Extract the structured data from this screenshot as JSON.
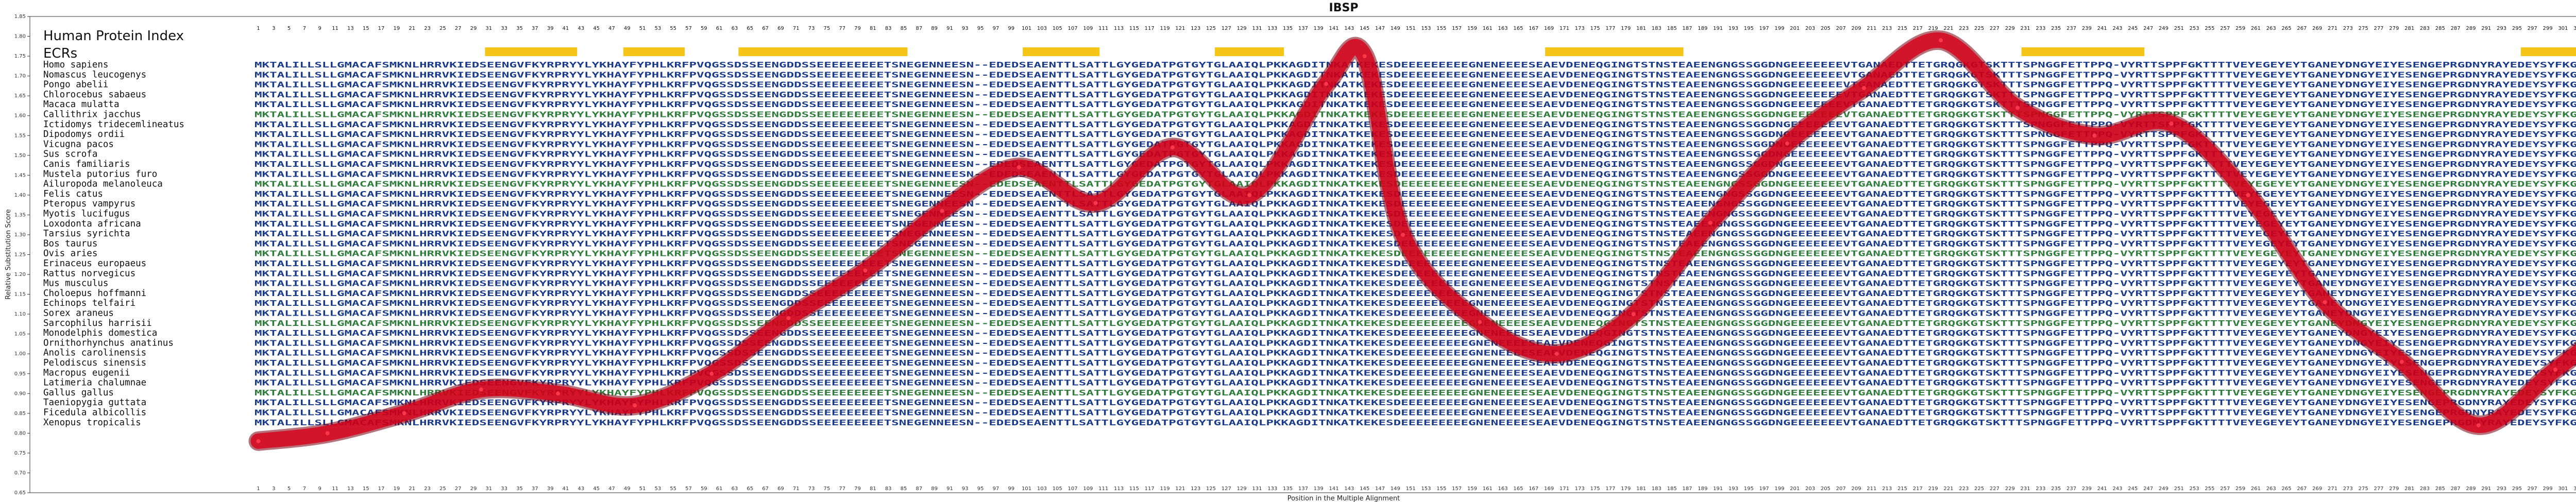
{
  "chart_data": {
    "type": "line",
    "title": "IBSP",
    "xlabel": "Position in the Multiple Alignment",
    "ylabel": "Relative Substitution Score",
    "xlim": [
      1,
      316
    ],
    "ylim": [
      0.65,
      1.85
    ],
    "yticks": [
      "0.65",
      "0.70",
      "0.75",
      "0.80",
      "0.85",
      "0.90",
      "0.95",
      "1.00",
      "1.05",
      "1.10",
      "1.15",
      "1.20",
      "1.25",
      "1.30",
      "1.35",
      "1.40",
      "1.45",
      "1.50",
      "1.55",
      "1.60",
      "1.65",
      "1.70",
      "1.75",
      "1.80",
      "1.85"
    ],
    "header_title": "Human Protein Index",
    "ecr_label": "ECRs",
    "ecr_regions": [
      [
        31,
        42
      ],
      [
        49,
        56
      ],
      [
        64,
        85
      ],
      [
        101,
        110
      ],
      [
        126,
        134
      ],
      [
        169,
        186
      ],
      [
        231,
        246
      ],
      [
        296,
        307
      ]
    ],
    "ecr_color": "#f5c518",
    "line_color": "#d8001a",
    "x": [
      1,
      10,
      20,
      30,
      40,
      50,
      60,
      70,
      80,
      90,
      100,
      110,
      120,
      130,
      140,
      145,
      150,
      160,
      170,
      180,
      190,
      200,
      210,
      220,
      230,
      240,
      250,
      260,
      270,
      280,
      290,
      300,
      310,
      316
    ],
    "y": [
      0.78,
      0.8,
      0.85,
      0.91,
      0.9,
      0.87,
      0.95,
      1.09,
      1.21,
      1.36,
      1.47,
      1.38,
      1.52,
      1.4,
      1.68,
      1.75,
      1.3,
      1.08,
      1.0,
      1.1,
      1.33,
      1.53,
      1.67,
      1.79,
      1.62,
      1.55,
      1.58,
      1.4,
      1.13,
      0.98,
      0.82,
      0.96,
      1.1,
      1.1
    ],
    "species": [
      "Homo sapiens",
      "Nomascus leucogenys",
      "Pongo abelii",
      "Chlorocebus sabaeus",
      "Macaca mulatta",
      "Callithrix jacchus",
      "Ictidomys tridecemlineatus",
      "Dipodomys ordii",
      "Vicugna pacos",
      "Sus scrofa",
      "Canis familiaris",
      "Mustela putorius furo",
      "Ailuropoda melanoleuca",
      "Felis catus",
      "Pteropus vampyrus",
      "Myotis lucifugus",
      "Loxodonta africana",
      "Tarsius syrichta",
      "Bos taurus",
      "Ovis aries",
      "Erinaceus europaeus",
      "Rattus norvegicus",
      "Mus musculus",
      "Choloepus hoffmanni",
      "Echinops telfairi",
      "Sorex araneus",
      "Sarcophilus harrisii",
      "Monodelphis domestica",
      "Ornithorhynchus anatinus",
      "Anolis carolinensis",
      "Pelodiscus sinensis",
      "Macropus eugenii",
      "Latimeria chalumnae",
      "Gallus gallus",
      "Taeniopygia guttata",
      "Ficedula albicollis",
      "Xenopus tropicalis"
    ],
    "sequences": [
      "MKTALILLSLLGMACAFSMKNLHRRVKIEDSEENGVFKYRPRYYLYKHAYFYPHLKRFPVQGSSDSSEENGDDSSEEEEEEEEETSNEGENNEESN--EDEDSEAENTTLSATTLGYGEDATPGTGYTGLAAIQLPKKAGDITNKATKEKESDEEEEEEEEEGNENEEEESEAEVDENEQGINGTSTNSTEAEENGNGSSGGDNGEEEEEEEVTGANAEDTTETGRQGKGTSKTTTSPNGGFETTPPQ-VYRTTSPPFGKTTTTVEYEGEYEYTGANEYDNGYEIYESENGEPRGDNYRAYEDEYSYFKGQGYDGYDGQNYYHH",
      "MKTALILLSLLGMACAFSMKNLHRRVKIEDSEENGVFKYRPRYYLYKHAYFYPHLKRFPVQGSSDSSEENGDDSSEEEEEEEEETSNEGENNEESN--EDEDSEAENTTLSATTLGYGEDATPGTGYTGLAAIQLPKKAGDITNKATKEKESDEEEEEEEEEGNENEEEESEAEVDENEQGINGTSTNSTEAEENGNGSSGGDNGEEEEEEEVTGANAEDTTETGRQGKGTSKTTTSPNGGFETTPPQ-VYRTTSPPFGKTTTTVEYEGEYEYTGANEYDNGYEIYESENGEPRGDNYRAYEDEYSYFKGQGYDGYDGQNYYHH",
      "MKTALILLSLLGMACAFSMKNLHRRVKIEDSEENGVFKYRPRYYLYKHAYFYPHLKRFPVQGSSDSSEENGDDSSEEEEEEEEETSNEGENNEESN--EDEDSEAENTTLSATTLGYGEDATPGTGYTGLAAIQLPKKAGDITNKATKEKESDEEEEEEEEEGNENEEEESEAEVDENEQGINGTSTNSTEAEENGNGSSGGDNGEEEEEEEVTGANAEDTTETGRQGKGTSKTTTSPNGGFETTPPQ-VYRTTSPPFGKTTTTVEYEGEYEYTGANEYDNGYEIYESENGEPRGDNYRAYEDEYSYFKGQGYDGYDGQNYYHH",
      "MKTALILLSLLGMACAFSMKNLHRRVKIEDSEENGVFKYRPRYYLYKHAYFYPHLKRFPVQGSSDSSEENGDDSSEEEEEEEEETSNEGENNEESN--EDEDSEAENTTLSATTLGYGEDATPGTGYTGLAAIQLPKKAGDITNKATKEKESDEEEEEEEEEGNENEEEESEAEVDENEQGINGTSTNSTEAEENGNGSSGGDNGEEEEEEEVTGANAEDTTETGRQGKGTSKTTTSPNGGFETTPPQ-VYRTTSPPFGKTTTTVEYEGEYEYTGANEYDNGYEIYESENGEPRGDNYRAYEDEYSYFKGQGYDGYDGQNYYHH",
      "MKTALILLSLLGMACAFSMKNLHRRVKIEDSEENGVFKYRPRYYLYKHAYFYPHLKRFPVQGSSDSSEENGDDSSEEEEEEEEETSNEGENNEESN--EDEDSEAENTTLSATTLGYGEDATPGTGYTGLAAIQLPKKAGDITNKATKEKESDEEEEEEEEEGNENEEEESEAEVDENEQGINGTSTNSTEAEENGNGSSGGDNGEEEEEEEVTGANAEDTTETGRQGKGTSKTTTSPNGGFETTPPQ-VYRTTSPPFGKTTTTVEYEGEYEYTGANEYDNGYEIYESENGEPRGDNYRAYEDEYSYFKGQGYDGYDGQNYYHH",
      "MKTALILLSLLGMACAFSMKNLHRRVKIEDSEENGVFKYRPRYYLYKHAYFYPHLKRFPVQGSSDSSEENGDDSSEEEEEEEEETSNEGENNEESN--EDEDSEAENTTLSATTLGYGEDATPGTGYTGLAAIQLPKKAGDITNKATKEKESDEEEEEEEEEGNENEEEESEAEVDENEQGINGTSTNSTEAEENGNGSSGGDNGEEEEEEEVTGANAEDTTETGRQGKGTSKTTTSPNGGFETTPPQ-VYRTTSPPFGKTTTTVEYEGEYEYTGANEYDNGYEIYESENGEPRGDNYRAYEDEYSYFKGQGYDGYDGQNYYHH",
      "MKTALILLSLLGMACAFSMKNLHRRVKIEDSEENGVFKYRPRYYLYKHAYFYPHLKRFPVQGSSDSSEENGDDSSEEEEEEEEETSNEGENNEESN--EDEDSEAENTTLSATTLGYGEDATPGTGYTGLAAIQLPKKAGDITNKATKEKESDEEEEEEEEEGNENEEEESEAEVDENEQGINGTSTNSTEAEENGNGSSGGDNGEEEEEEEVTGANAEDTTETGRQGKGTSKTTTSPNGGFETTPPQ-VYRTTSPPFGKTTTTVEYEGEYEYTGANEYDNGYEIYESENGEPRGDNYRAYEDEYSYFKGQGYDGYDGQNYYHH",
      "MKTALILLSLLGMACAFSMKNLHRRVKIEDSEENGVFKYRPRYYLYKHAYFYPHLKRFPVQGSSDSSEENGDDSSEEEEEEEEETSNEGENNEESN--EDEDSEAENTTLSATTLGYGEDATPGTGYTGLAAIQLPKKAGDITNKATKEKESDEEEEEEEEEGNENEEEESEAEVDENEQGINGTSTNSTEAEENGNGSSGGDNGEEEEEEEVTGANAEDTTETGRQGKGTSKTTTSPNGGFETTPPQ-VYRTTSPPFGKTTTTVEYEGEYEYTGANEYDNGYEIYESENGEPRGDNYRAYEDEYSYFKGQGYDGYDGQNYYHH",
      "MKTALILLSLLGMACAFSMKNLHRRVKIEDSEENGVFKYRPRYYLYKHAYFYPHLKRFPVQGSSDSSEENGDDSSEEEEEEEEETSNEGENNEESN--EDEDSEAENTTLSATTLGYGEDATPGTGYTGLAAIQLPKKAGDITNKATKEKESDEEEEEEEEEGNENEEEESEAEVDENEQGINGTSTNSTEAEENGNGSSGGDNGEEEEEEEVTGANAEDTTETGRQGKGTSKTTTSPNGGFETTPPQ-VYRTTSPPFGKTTTTVEYEGEYEYTGANEYDNGYEIYESENGEPRGDNYRAYEDEYSYFKGQGYDGYDGQNYYHH",
      "MKTALILLSLLGMACAFSMKNLHRRVKIEDSEENGVFKYRPRYYLYKHAYFYPHLKRFPVQGSSDSSEENGDDSSEEEEEEEEETSNEGENNEESN--EDEDSEAENTTLSATTLGYGEDATPGTGYTGLAAIQLPKKAGDITNKATKEKESDEEEEEEEEEGNENEEEESEAEVDENEQGINGTSTNSTEAEENGNGSSGGDNGEEEEEEEVTGANAEDTTETGRQGKGTSKTTTSPNGGFETTPPQ-VYRTTSPPFGKTTTTVEYEGEYEYTGANEYDNGYEIYESENGEPRGDNYRAYEDEYSYFKGQGYDGYDGQNYYHH",
      "MKTALILLSLLGMACAFSMKNLHRRVKIEDSEENGVFKYRPRYYLYKHAYFYPHLKRFPVQGSSDSSEENGDDSSEEEEEEEEETSNEGENNEESN--EDEDSEAENTTLSATTLGYGEDATPGTGYTGLAAIQLPKKAGDITNKATKEKESDEEEEEEEEEGNENEEEESEAEVDENEQGINGTSTNSTEAEENGNGSSGGDNGEEEEEEEVTGANAEDTTETGRQGKGTSKTTTSPNGGFETTPPQ-VYRTTSPPFGKTTTTVEYEGEYEYTGANEYDNGYEIYESENGEPRGDNYRAYEDEYSYFKGQGYDGYDGQNYYHH",
      "MKTALILLSLLGMACAFSMKNLHRRVKIEDSEENGVFKYRPRYYLYKHAYFYPHLKRFPVQGSSDSSEENGDDSSEEEEEEEEETSNEGENNEESN--EDEDSEAENTTLSATTLGYGEDATPGTGYTGLAAIQLPKKAGDITNKATKEKESDEEEEEEEEEGNENEEEESEAEVDENEQGINGTSTNSTEAEENGNGSSGGDNGEEEEEEEVTGANAEDTTETGRQGKGTSKTTTSPNGGFETTPPQ-VYRTTSPPFGKTTTTVEYEGEYEYTGANEYDNGYEIYESENGEPRGDNYRAYEDEYSYFKGQGYDGYDGQNYYHH",
      "MKTALILLSLLGMACAFSMKNLHRRVKIEDSEENGVFKYRPRYYLYKHAYFYPHLKRFPVQGSSDSSEENGDDSSEEEEEEEEETSNEGENNEESN--EDEDSEAENTTLSATTLGYGEDATPGTGYTGLAAIQLPKKAGDITNKATKEKESDEEEEEEEEEGNENEEEESEAEVDENEQGINGTSTNSTEAEENGNGSSGGDNGEEEEEEEVTGANAEDTTETGRQGKGTSKTTTSPNGGFETTPPQ-VYRTTSPPFGKTTTTVEYEGEYEYTGANEYDNGYEIYESENGEPRGDNYRAYEDEYSYFKGQGYDGYDGQNYYHH",
      "MKTALILLSLLGMACAFSMKNLHRRVKIEDSEENGVFKYRPRYYLYKHAYFYPHLKRFPVQGSSDSSEENGDDSSEEEEEEEEETSNEGENNEESN--EDEDSEAENTTLSATTLGYGEDATPGTGYTGLAAIQLPKKAGDITNKATKEKESDEEEEEEEEEGNENEEEESEAEVDENEQGINGTSTNSTEAEENGNGSSGGDNGEEEEEEEVTGANAEDTTETGRQGKGTSKTTTSPNGGFETTPPQ-VYRTTSPPFGKTTTTVEYEGEYEYTGANEYDNGYEIYESENGEPRGDNYRAYEDEYSYFKGQGYDGYDGQNYYHH",
      "MKTALILLSLLGMACAFSMKNLHRRVKIEDSEENGVFKYRPRYYLYKHAYFYPHLKRFPVQGSSDSSEENGDDSSEEEEEEEEETSNEGENNEESN--EDEDSEAENTTLSATTLGYGEDATPGTGYTGLAAIQLPKKAGDITNKATKEKESDEEEEEEEEEGNENEEEESEAEVDENEQGINGTSTNSTEAEENGNGSSGGDNGEEEEEEEVTGANAEDTTETGRQGKGTSKTTTSPNGGFETTPPQ-VYRTTSPPFGKTTTTVEYEGEYEYTGANEYDNGYEIYESENGEPRGDNYRAYEDEYSYFKGQGYDGYDGQNYYHH",
      "MKTALILLSLLGMACAFSMKNLHRRVKIEDSEENGVFKYRPRYYLYKHAYFYPHLKRFPVQGSSDSSEENGDDSSEEEEEEEEETSNEGENNEESN--EDEDSEAENTTLSATTLGYGEDATPGTGYTGLAAIQLPKKAGDITNKATKEKESDEEEEEEEEEGNENEEEESEAEVDENEQGINGTSTNSTEAEENGNGSSGGDNGEEEEEEEVTGANAEDTTETGRQGKGTSKTTTSPNGGFETTPPQ-VYRTTSPPFGKTTTTVEYEGEYEYTGANEYDNGYEIYESENGEPRGDNYRAYEDEYSYFKGQGYDGYDGQNYYHH",
      "MKTALILLSLLGMACAFSMKNLHRRVKIEDSEENGVFKYRPRYYLYKHAYFYPHLKRFPVQGSSDSSEENGDDSSEEEEEEEEETSNEGENNEESN--EDEDSEAENTTLSATTLGYGEDATPGTGYTGLAAIQLPKKAGDITNKATKEKESDEEEEEEEEEGNENEEEESEAEVDENEQGINGTSTNSTEAEENGNGSSGGDNGEEEEEEEVTGANAEDTTETGRQGKGTSKTTTSPNGGFETTPPQ-VYRTTSPPFGKTTTTVEYEGEYEYTGANEYDNGYEIYESENGEPRGDNYRAYEDEYSYFKGQGYDGYDGQNYYHH",
      "MKTALILLSLLGMACAFSMKNLHRRVKIEDSEENGVFKYRPRYYLYKHAYFYPHLKRFPVQGSSDSSEENGDDSSEEEEEEEEETSNEGENNEESN--EDEDSEAENTTLSATTLGYGEDATPGTGYTGLAAIQLPKKAGDITNKATKEKESDEEEEEEEEEGNENEEEESEAEVDENEQGINGTSTNSTEAEENGNGSSGGDNGEEEEEEEVTGANAEDTTETGRQGKGTSKTTTSPNGGFETTPPQ-VYRTTSPPFGKTTTTVEYEGEYEYTGANEYDNGYEIYESENGEPRGDNYRAYEDEYSYFKGQGYDGYDGQNYYHH",
      "MKTALILLSLLGMACAFSMKNLHRRVKIEDSEENGVFKYRPRYYLYKHAYFYPHLKRFPVQGSSDSSEENGDDSSEEEEEEEEETSNEGENNEESN--EDEDSEAENTTLSATTLGYGEDATPGTGYTGLAAIQLPKKAGDITNKATKEKESDEEEEEEEEEGNENEEEESEAEVDENEQGINGTSTNSTEAEENGNGSSGGDNGEEEEEEEVTGANAEDTTETGRQGKGTSKTTTSPNGGFETTPPQ-VYRTTSPPFGKTTTTVEYEGEYEYTGANEYDNGYEIYESENGEPRGDNYRAYEDEYSYFKGQGYDGYDGQNYYHH",
      "MKTALILLSLLGMACAFSMKNLHRRVKIEDSEENGVFKYRPRYYLYKHAYFYPHLKRFPVQGSSDSSEENGDDSSEEEEEEEEETSNEGENNEESN--EDEDSEAENTTLSATTLGYGEDATPGTGYTGLAAIQLPKKAGDITNKATKEKESDEEEEEEEEEGNENEEEESEAEVDENEQGINGTSTNSTEAEENGNGSSGGDNGEEEEEEEVTGANAEDTTETGRQGKGTSKTTTSPNGGFETTPPQ-VYRTTSPPFGKTTTTVEYEGEYEYTGANEYDNGYEIYESENGEPRGDNYRAYEDEYSYFKGQGYDGYDGQNYYHH",
      "MKTALILLSLLGMACAFSMKNLHRRVKIEDSEENGVFKYRPRYYLYKHAYFYPHLKRFPVQGSSDSSEENGDDSSEEEEEEEEETSNEGENNEESN--EDEDSEAENTTLSATTLGYGEDATPGTGYTGLAAIQLPKKAGDITNKATKEKESDEEEEEEEEEGNENEEEESEAEVDENEQGINGTSTNSTEAEENGNGSSGGDNGEEEEEEEVTGANAEDTTETGRQGKGTSKTTTSPNGGFETTPPQ-VYRTTSPPFGKTTTTVEYEGEYEYTGANEYDNGYEIYESENGEPRGDNYRAYEDEYSYFKGQGYDGYDGQNYYHH",
      "MKTALILLSLLGMACAFSMKNLHRRVKIEDSEENGVFKYRPRYYLYKHAYFYPHLKRFPVQGSSDSSEENGDDSSEEEEEEEEETSNEGENNEESN--EDEDSEAENTTLSATTLGYGEDATPGTGYTGLAAIQLPKKAGDITNKATKEKESDEEEEEEEEEGNENEEEESEAEVDENEQGINGTSTNSTEAEENGNGSSGGDNGEEEEEEEVTGANAEDTTETGRQGKGTSKTTTSPNGGFETTPPQ-VYRTTSPPFGKTTTTVEYEGEYEYTGANEYDNGYEIYESENGEPRGDNYRAYEDEYSYFKGQGYDGYDGQNYYHH",
      "MKTALILLSLLGMACAFSMKNLHRRVKIEDSEENGVFKYRPRYYLYKHAYFYPHLKRFPVQGSSDSSEENGDDSSEEEEEEEEETSNEGENNEESN--EDEDSEAENTTLSATTLGYGEDATPGTGYTGLAAIQLPKKAGDITNKATKEKESDEEEEEEEEEGNENEEEESEAEVDENEQGINGTSTNSTEAEENGNGSSGGDNGEEEEEEEVTGANAEDTTETGRQGKGTSKTTTSPNGGFETTPPQ-VYRTTSPPFGKTTTTVEYEGEYEYTGANEYDNGYEIYESENGEPRGDNYRAYEDEYSYFKGQGYDGYDGQNYYHH",
      "MKTALILLSLLGMACAFSMKNLHRRVKIEDSEENGVFKYRPRYYLYKHAYFYPHLKRFPVQGSSDSSEENGDDSSEEEEEEEEETSNEGENNEESN--EDEDSEAENTTLSATTLGYGEDATPGTGYTGLAAIQLPKKAGDITNKATKEKESDEEEEEEEEEGNENEEEESEAEVDENEQGINGTSTNSTEAEENGNGSSGGDNGEEEEEEEVTGANAEDTTETGRQGKGTSKTTTSPNGGFETTPPQ-VYRTTSPPFGKTTTTVEYEGEYEYTGANEYDNGYEIYESENGEPRGDNYRAYEDEYSYFKGQGYDGYDGQNYYHH",
      "MKTALILLSLLGMACAFSMKNLHRRVKIEDSEENGVFKYRPRYYLYKHAYFYPHLKRFPVQGSSDSSEENGDDSSEEEEEEEEETSNEGENNEESN--EDEDSEAENTTLSATTLGYGEDATPGTGYTGLAAIQLPKKAGDITNKATKEKESDEEEEEEEEEGNENEEEESEAEVDENEQGINGTSTNSTEAEENGNGSSGGDNGEEEEEEEVTGANAEDTTETGRQGKGTSKTTTSPNGGFETTPPQ-VYRTTSPPFGKTTTTVEYEGEYEYTGANEYDNGYEIYESENGEPRGDNYRAYEDEYSYFKGQGYDGYDGQNYYHH",
      "MKTALILLSLLGMACAFSMKNLHRRVKIEDSEENGVFKYRPRYYLYKHAYFYPHLKRFPVQGSSDSSEENGDDSSEEEEEEEEETSNEGENNEESN--EDEDSEAENTTLSATTLGYGEDATPGTGYTGLAAIQLPKKAGDITNKATKEKESDEEEEEEEEEGNENEEEESEAEVDENEQGINGTSTNSTEAEENGNGSSGGDNGEEEEEEEVTGANAEDTTETGRQGKGTSKTTTSPNGGFETTPPQ-VYRTTSPPFGKTTTTVEYEGEYEYTGANEYDNGYEIYESENGEPRGDNYRAYEDEYSYFKGQGYDGYDGQNYYHH",
      "MKTALILLSLLGMACAFSMKNLHRRVKIEDSEENGVFKYRPRYYLYKHAYFYPHLKRFPVQGSSDSSEENGDDSSEEEEEEEEETSNEGENNEESN--EDEDSEAENTTLSATTLGYGEDATPGTGYTGLAAIQLPKKAGDITNKATKEKESDEEEEEEEEEGNENEEEESEAEVDENEQGINGTSTNSTEAEENGNGSSGGDNGEEEEEEEVTGANAEDTTETGRQGKGTSKTTTSPNGGFETTPPQ-VYRTTSPPFGKTTTTVEYEGEYEYTGANEYDNGYEIYESENGEPRGDNYRAYEDEYSYFKGQGYDGYDGQNYYHH",
      "MKTALILLSLLGMACAFSMKNLHRRVKIEDSEENGVFKYRPRYYLYKHAYFYPHLKRFPVQGSSDSSEENGDDSSEEEEEEEEETSNEGENNEESN--EDEDSEAENTTLSATTLGYGEDATPGTGYTGLAAIQLPKKAGDITNKATKEKESDEEEEEEEEEGNENEEEESEAEVDENEQGINGTSTNSTEAEENGNGSSGGDNGEEEEEEEVTGANAEDTTETGRQGKGTSKTTTSPNGGFETTPPQ-VYRTTSPPFGKTTTTVEYEGEYEYTGANEYDNGYEIYESENGEPRGDNYRAYEDEYSYFKGQGYDGYDGQNYYHH",
      "MKTALILLSLLGMACAFSMKNLHRRVKIEDSEENGVFKYRPRYYLYKHAYFYPHLKRFPVQGSSDSSEENGDDSSEEEEEEEEETSNEGENNEESN--EDEDSEAENTTLSATTLGYGEDATPGTGYTGLAAIQLPKKAGDITNKATKEKESDEEEEEEEEEGNENEEEESEAEVDENEQGINGTSTNSTEAEENGNGSSGGDNGEEEEEEEVTGANAEDTTETGRQGKGTSKTTTSPNGGFETTPPQ-VYRTTSPPFGKTTTTVEYEGEYEYTGANEYDNGYEIYESENGEPRGDNYRAYEDEYSYFKGQGYDGYDGQNYYHH",
      "MKTALILLSLLGMACAFSMKNLHRRVKIEDSEENGVFKYRPRYYLYKHAYFYPHLKRFPVQGSSDSSEENGDDSSEEEEEEEEETSNEGENNEESN--EDEDSEAENTTLSATTLGYGEDATPGTGYTGLAAIQLPKKAGDITNKATKEKESDEEEEEEEEEGNENEEEESEAEVDENEQGINGTSTNSTEAEENGNGSSGGDNGEEEEEEEVTGANAEDTTETGRQGKGTSKTTTSPNGGFETTPPQ-VYRTTSPPFGKTTTTVEYEGEYEYTGANEYDNGYEIYESENGEPRGDNYRAYEDEYSYFKGQGYDGYDGQNYYHH",
      "MKTALILLSLLGMACAFSMKNLHRRVKIEDSEENGVFKYRPRYYLYKHAYFYPHLKRFPVQGSSDSSEENGDDSSEEEEEEEEETSNEGENNEESN--EDEDSEAENTTLSATTLGYGEDATPGTGYTGLAAIQLPKKAGDITNKATKEKESDEEEEEEEEEGNENEEEESEAEVDENEQGINGTSTNSTEAEENGNGSSGGDNGEEEEEEEVTGANAEDTTETGRQGKGTSKTTTSPNGGFETTPPQ-VYRTTSPPFGKTTTTVEYEGEYEYTGANEYDNGYEIYESENGEPRGDNYRAYEDEYSYFKGQGYDGYDGQNYYHH",
      "MKTALILLSLLGMACAFSMKNLHRRVKIEDSEENGVFKYRPRYYLYKHAYFYPHLKRFPVQGSSDSSEENGDDSSEEEEEEEEETSNEGENNEESN--EDEDSEAENTTLSATTLGYGEDATPGTGYTGLAAIQLPKKAGDITNKATKEKESDEEEEEEEEEGNENEEEESEAEVDENEQGINGTSTNSTEAEENGNGSSGGDNGEEEEEEEVTGANAEDTTETGRQGKGTSKTTTSPNGGFETTPPQ-VYRTTSPPFGKTTTTVEYEGEYEYTGANEYDNGYEIYESENGEPRGDNYRAYEDEYSYFKGQGYDGYDGQNYYHH",
      "MKTALILLSLLGMACAFSMKNLHRRVKIEDSEENGVFKYRPRYYLYKHAYFYPHLKRFPVQGSSDSSEENGDDSSEEEEEEEEETSNEGENNEESN--EDEDSEAENTTLSATTLGYGEDATPGTGYTGLAAIQLPKKAGDITNKATKEKESDEEEEEEEEEGNENEEEESEAEVDENEQGINGTSTNSTEAEENGNGSSGGDNGEEEEEEEVTGANAEDTTETGRQGKGTSKTTTSPNGGFETTPPQ-VYRTTSPPFGKTTTTVEYEGEYEYTGANEYDNGYEIYESENGEPRGDNYRAYEDEYSYFKGQGYDGYDGQNYYHH",
      "MKTALILLSLLGMACAFSMKNLHRRVKIEDSEENGVFKYRPRYYLYKHAYFYPHLKRFPVQGSSDSSEENGDDSSEEEEEEEEETSNEGENNEESN--EDEDSEAENTTLSATTLGYGEDATPGTGYTGLAAIQLPKKAGDITNKATKEKESDEEEEEEEEEGNENEEEESEAEVDENEQGINGTSTNSTEAEENGNGSSGGDNGEEEEEEEVTGANAEDTTETGRQGKGTSKTTTSPNGGFETTPPQ-VYRTTSPPFGKTTTTVEYEGEYEYTGANEYDNGYEIYESENGEPRGDNYRAYEDEYSYFKGQGYDGYDGQNYYHH",
      "MKTALILLSLLGMACAFSMKNLHRRVKIEDSEENGVFKYRPRYYLYKHAYFYPHLKRFPVQGSSDSSEENGDDSSEEEEEEEEETSNEGENNEESN--EDEDSEAENTTLSATTLGYGEDATPGTGYTGLAAIQLPKKAGDITNKATKEKESDEEEEEEEEEGNENEEEESEAEVDENEQGINGTSTNSTEAEENGNGSSGGDNGEEEEEEEVTGANAEDTTETGRQGKGTSKTTTSPNGGFETTPPQ-VYRTTSPPFGKTTTTVEYEGEYEYTGANEYDNGYEIYESENGEPRGDNYRAYEDEYSYFKGQGYDGYDGQNYYHH",
      "MKTALILLSLLGMACAFSMKNLHRRVKIEDSEENGVFKYRPRYYLYKHAYFYPHLKRFPVQGSSDSSEENGDDSSEEEEEEEEETSNEGENNEESN--EDEDSEAENTTLSATTLGYGEDATPGTGYTGLAAIQLPKKAGDITNKATKEKESDEEEEEEEEEGNENEEEESEAEVDENEQGINGTSTNSTEAEENGNGSSGGDNGEEEEEEEVTGANAEDTTETGRQGKGTSKTTTSPNGGFETTPPQ-VYRTTSPPFGKTTTTVEYEGEYEYTGANEYDNGYEIYESENGEPRGDNYRAYEDEYSYFKGQGYDGYDGQNYYHH",
      "MKTALILLSLLGMACAFSMKNLHRRVKIEDSEENGVFKYRPRYYLYKHAYFYPHLKRFPVQGSSDSSEENGDDSSEEEEEEEEETSNEGENNEESN--EDEDSEAENTTLSATTLGYGEDATPGTGYTGLAAIQLPKKAGDITNKATKEKESDEEEEEEEEEGNENEEEESEAEVDENEQGINGTSTNSTEAEENGNGSSGGDNGEEEEEEEVTGANAEDTTETGRQGKGTSKTTTSPNGGFETTPPQ-VYRTTSPPFGKTTTTVEYEGEYEYTGANEYDNGYEIYESENGEPRGDNYRAYEDEYSYFKGQGYDGYDGQNYYHH"
    ],
    "seq_color_conserved": "#1a3a8a",
    "seq_color_variable": "#2f7d3a"
  }
}
